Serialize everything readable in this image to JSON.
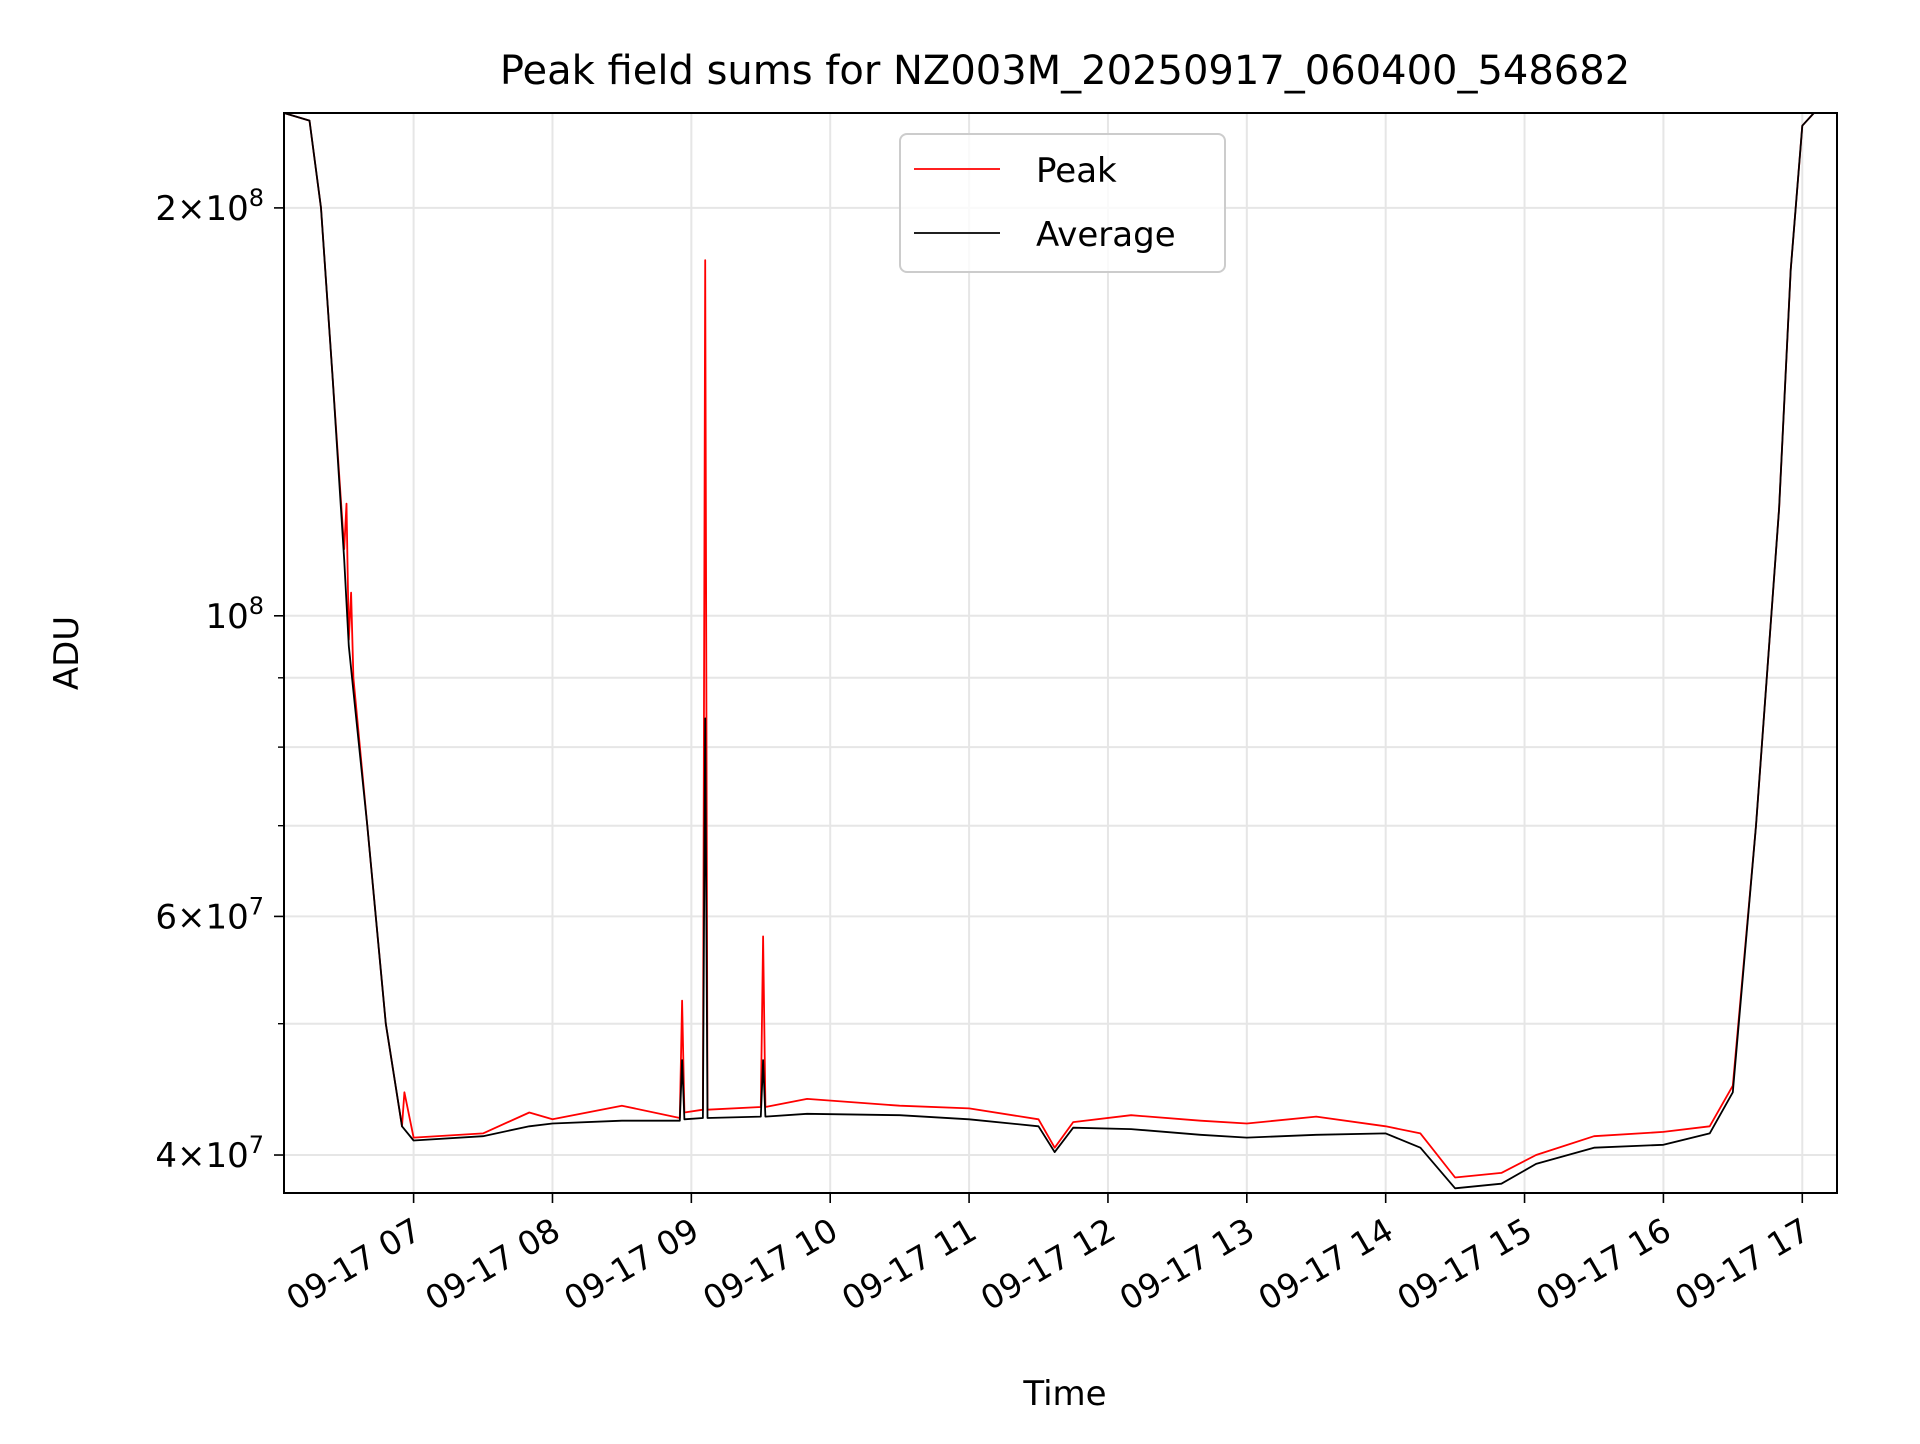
{
  "chart_data": {
    "type": "line",
    "title": "Peak field sums for NZ003M_20250917_060400_548682",
    "xlabel": "Time",
    "ylabel": "ADU",
    "yscale": "log",
    "grid": true,
    "legend_position": "upper center",
    "xlim": [
      "2025-09-17T06:04",
      "2025-09-17T17:15"
    ],
    "ylim": [
      37500000,
      235000000
    ],
    "x_ticks": [
      {
        "label": "09-17 07",
        "t": "2025-09-17T07:00"
      },
      {
        "label": "09-17 08",
        "t": "2025-09-17T08:00"
      },
      {
        "label": "09-17 09",
        "t": "2025-09-17T09:00"
      },
      {
        "label": "09-17 10",
        "t": "2025-09-17T10:00"
      },
      {
        "label": "09-17 11",
        "t": "2025-09-17T11:00"
      },
      {
        "label": "09-17 12",
        "t": "2025-09-17T12:00"
      },
      {
        "label": "09-17 13",
        "t": "2025-09-17T13:00"
      },
      {
        "label": "09-17 14",
        "t": "2025-09-17T14:00"
      },
      {
        "label": "09-17 15",
        "t": "2025-09-17T15:00"
      },
      {
        "label": "09-17 16",
        "t": "2025-09-17T16:00"
      },
      {
        "label": "09-17 17",
        "t": "2025-09-17T17:00"
      }
    ],
    "y_major_ticks": [
      {
        "mant": "4",
        "exp": "7",
        "value": 40000000
      },
      {
        "mant": "6",
        "exp": "7",
        "value": 60000000
      },
      {
        "mant": "",
        "exp": "8",
        "value": 100000000
      },
      {
        "mant": "2",
        "exp": "8",
        "value": 200000000
      }
    ],
    "y_minor_ticks": [
      50000000,
      70000000,
      80000000,
      90000000
    ],
    "series": [
      {
        "name": "Peak",
        "color": "#ff0000",
        "points": [
          [
            "2025-09-17T06:04",
            235000000
          ],
          [
            "2025-09-17T06:15",
            232000000
          ],
          [
            "2025-09-17T06:20",
            200000000
          ],
          [
            "2025-09-17T06:25",
            150000000
          ],
          [
            "2025-09-17T06:30",
            112000000
          ],
          [
            "2025-09-17T06:31",
            121000000
          ],
          [
            "2025-09-17T06:32",
            96000000
          ],
          [
            "2025-09-17T06:33",
            104000000
          ],
          [
            "2025-09-17T06:34",
            90000000
          ],
          [
            "2025-09-17T06:40",
            70000000
          ],
          [
            "2025-09-17T06:48",
            50000000
          ],
          [
            "2025-09-17T06:55",
            42000000
          ],
          [
            "2025-09-17T06:56",
            44500000
          ],
          [
            "2025-09-17T07:00",
            41200000
          ],
          [
            "2025-09-17T07:30",
            41500000
          ],
          [
            "2025-09-17T07:50",
            43000000
          ],
          [
            "2025-09-17T08:00",
            42500000
          ],
          [
            "2025-09-17T08:30",
            43500000
          ],
          [
            "2025-09-17T08:55",
            42600000
          ],
          [
            "2025-09-17T08:56",
            52000000
          ],
          [
            "2025-09-17T08:57",
            43000000
          ],
          [
            "2025-09-17T09:05",
            43200000
          ],
          [
            "2025-09-17T09:06",
            183000000
          ],
          [
            "2025-09-17T09:07",
            43200000
          ],
          [
            "2025-09-17T09:30",
            43400000
          ],
          [
            "2025-09-17T09:31",
            58000000
          ],
          [
            "2025-09-17T09:32",
            43400000
          ],
          [
            "2025-09-17T09:50",
            44000000
          ],
          [
            "2025-09-17T10:30",
            43500000
          ],
          [
            "2025-09-17T11:00",
            43300000
          ],
          [
            "2025-09-17T11:30",
            42500000
          ],
          [
            "2025-09-17T11:37",
            40500000
          ],
          [
            "2025-09-17T11:45",
            42300000
          ],
          [
            "2025-09-17T12:10",
            42800000
          ],
          [
            "2025-09-17T12:40",
            42400000
          ],
          [
            "2025-09-17T13:00",
            42200000
          ],
          [
            "2025-09-17T13:30",
            42700000
          ],
          [
            "2025-09-17T14:00",
            42000000
          ],
          [
            "2025-09-17T14:15",
            41500000
          ],
          [
            "2025-09-17T14:30",
            38500000
          ],
          [
            "2025-09-17T14:50",
            38800000
          ],
          [
            "2025-09-17T15:05",
            40000000
          ],
          [
            "2025-09-17T15:30",
            41300000
          ],
          [
            "2025-09-17T16:00",
            41600000
          ],
          [
            "2025-09-17T16:20",
            42000000
          ],
          [
            "2025-09-17T16:30",
            45000000
          ],
          [
            "2025-09-17T16:40",
            70000000
          ],
          [
            "2025-09-17T16:50",
            120000000
          ],
          [
            "2025-09-17T16:55",
            180000000
          ],
          [
            "2025-09-17T17:00",
            230000000
          ],
          [
            "2025-09-17T17:05",
            235000000
          ],
          [
            "2025-09-17T17:15",
            235000000
          ]
        ]
      },
      {
        "name": "Average",
        "color": "#000000",
        "points": [
          [
            "2025-09-17T06:04",
            235000000
          ],
          [
            "2025-09-17T06:15",
            232000000
          ],
          [
            "2025-09-17T06:20",
            200000000
          ],
          [
            "2025-09-17T06:25",
            150000000
          ],
          [
            "2025-09-17T06:30",
            110000000
          ],
          [
            "2025-09-17T06:32",
            95000000
          ],
          [
            "2025-09-17T06:34",
            88000000
          ],
          [
            "2025-09-17T06:40",
            70000000
          ],
          [
            "2025-09-17T06:48",
            50000000
          ],
          [
            "2025-09-17T06:55",
            42000000
          ],
          [
            "2025-09-17T07:00",
            41000000
          ],
          [
            "2025-09-17T07:30",
            41300000
          ],
          [
            "2025-09-17T07:50",
            42000000
          ],
          [
            "2025-09-17T08:00",
            42200000
          ],
          [
            "2025-09-17T08:30",
            42400000
          ],
          [
            "2025-09-17T08:55",
            42400000
          ],
          [
            "2025-09-17T08:56",
            47000000
          ],
          [
            "2025-09-17T08:57",
            42500000
          ],
          [
            "2025-09-17T09:05",
            42600000
          ],
          [
            "2025-09-17T09:06",
            84000000
          ],
          [
            "2025-09-17T09:07",
            42600000
          ],
          [
            "2025-09-17T09:30",
            42700000
          ],
          [
            "2025-09-17T09:31",
            47000000
          ],
          [
            "2025-09-17T09:32",
            42700000
          ],
          [
            "2025-09-17T09:50",
            42900000
          ],
          [
            "2025-09-17T10:30",
            42800000
          ],
          [
            "2025-09-17T11:00",
            42500000
          ],
          [
            "2025-09-17T11:30",
            42000000
          ],
          [
            "2025-09-17T11:37",
            40200000
          ],
          [
            "2025-09-17T11:45",
            41900000
          ],
          [
            "2025-09-17T12:10",
            41800000
          ],
          [
            "2025-09-17T12:40",
            41400000
          ],
          [
            "2025-09-17T13:00",
            41200000
          ],
          [
            "2025-09-17T13:30",
            41400000
          ],
          [
            "2025-09-17T14:00",
            41500000
          ],
          [
            "2025-09-17T14:15",
            40500000
          ],
          [
            "2025-09-17T14:30",
            37800000
          ],
          [
            "2025-09-17T14:50",
            38100000
          ],
          [
            "2025-09-17T15:05",
            39400000
          ],
          [
            "2025-09-17T15:30",
            40500000
          ],
          [
            "2025-09-17T16:00",
            40700000
          ],
          [
            "2025-09-17T16:20",
            41500000
          ],
          [
            "2025-09-17T16:30",
            44500000
          ],
          [
            "2025-09-17T16:40",
            70000000
          ],
          [
            "2025-09-17T16:50",
            120000000
          ],
          [
            "2025-09-17T16:55",
            180000000
          ],
          [
            "2025-09-17T17:00",
            230000000
          ],
          [
            "2025-09-17T17:05",
            235000000
          ],
          [
            "2025-09-17T17:15",
            235000000
          ]
        ]
      }
    ]
  }
}
